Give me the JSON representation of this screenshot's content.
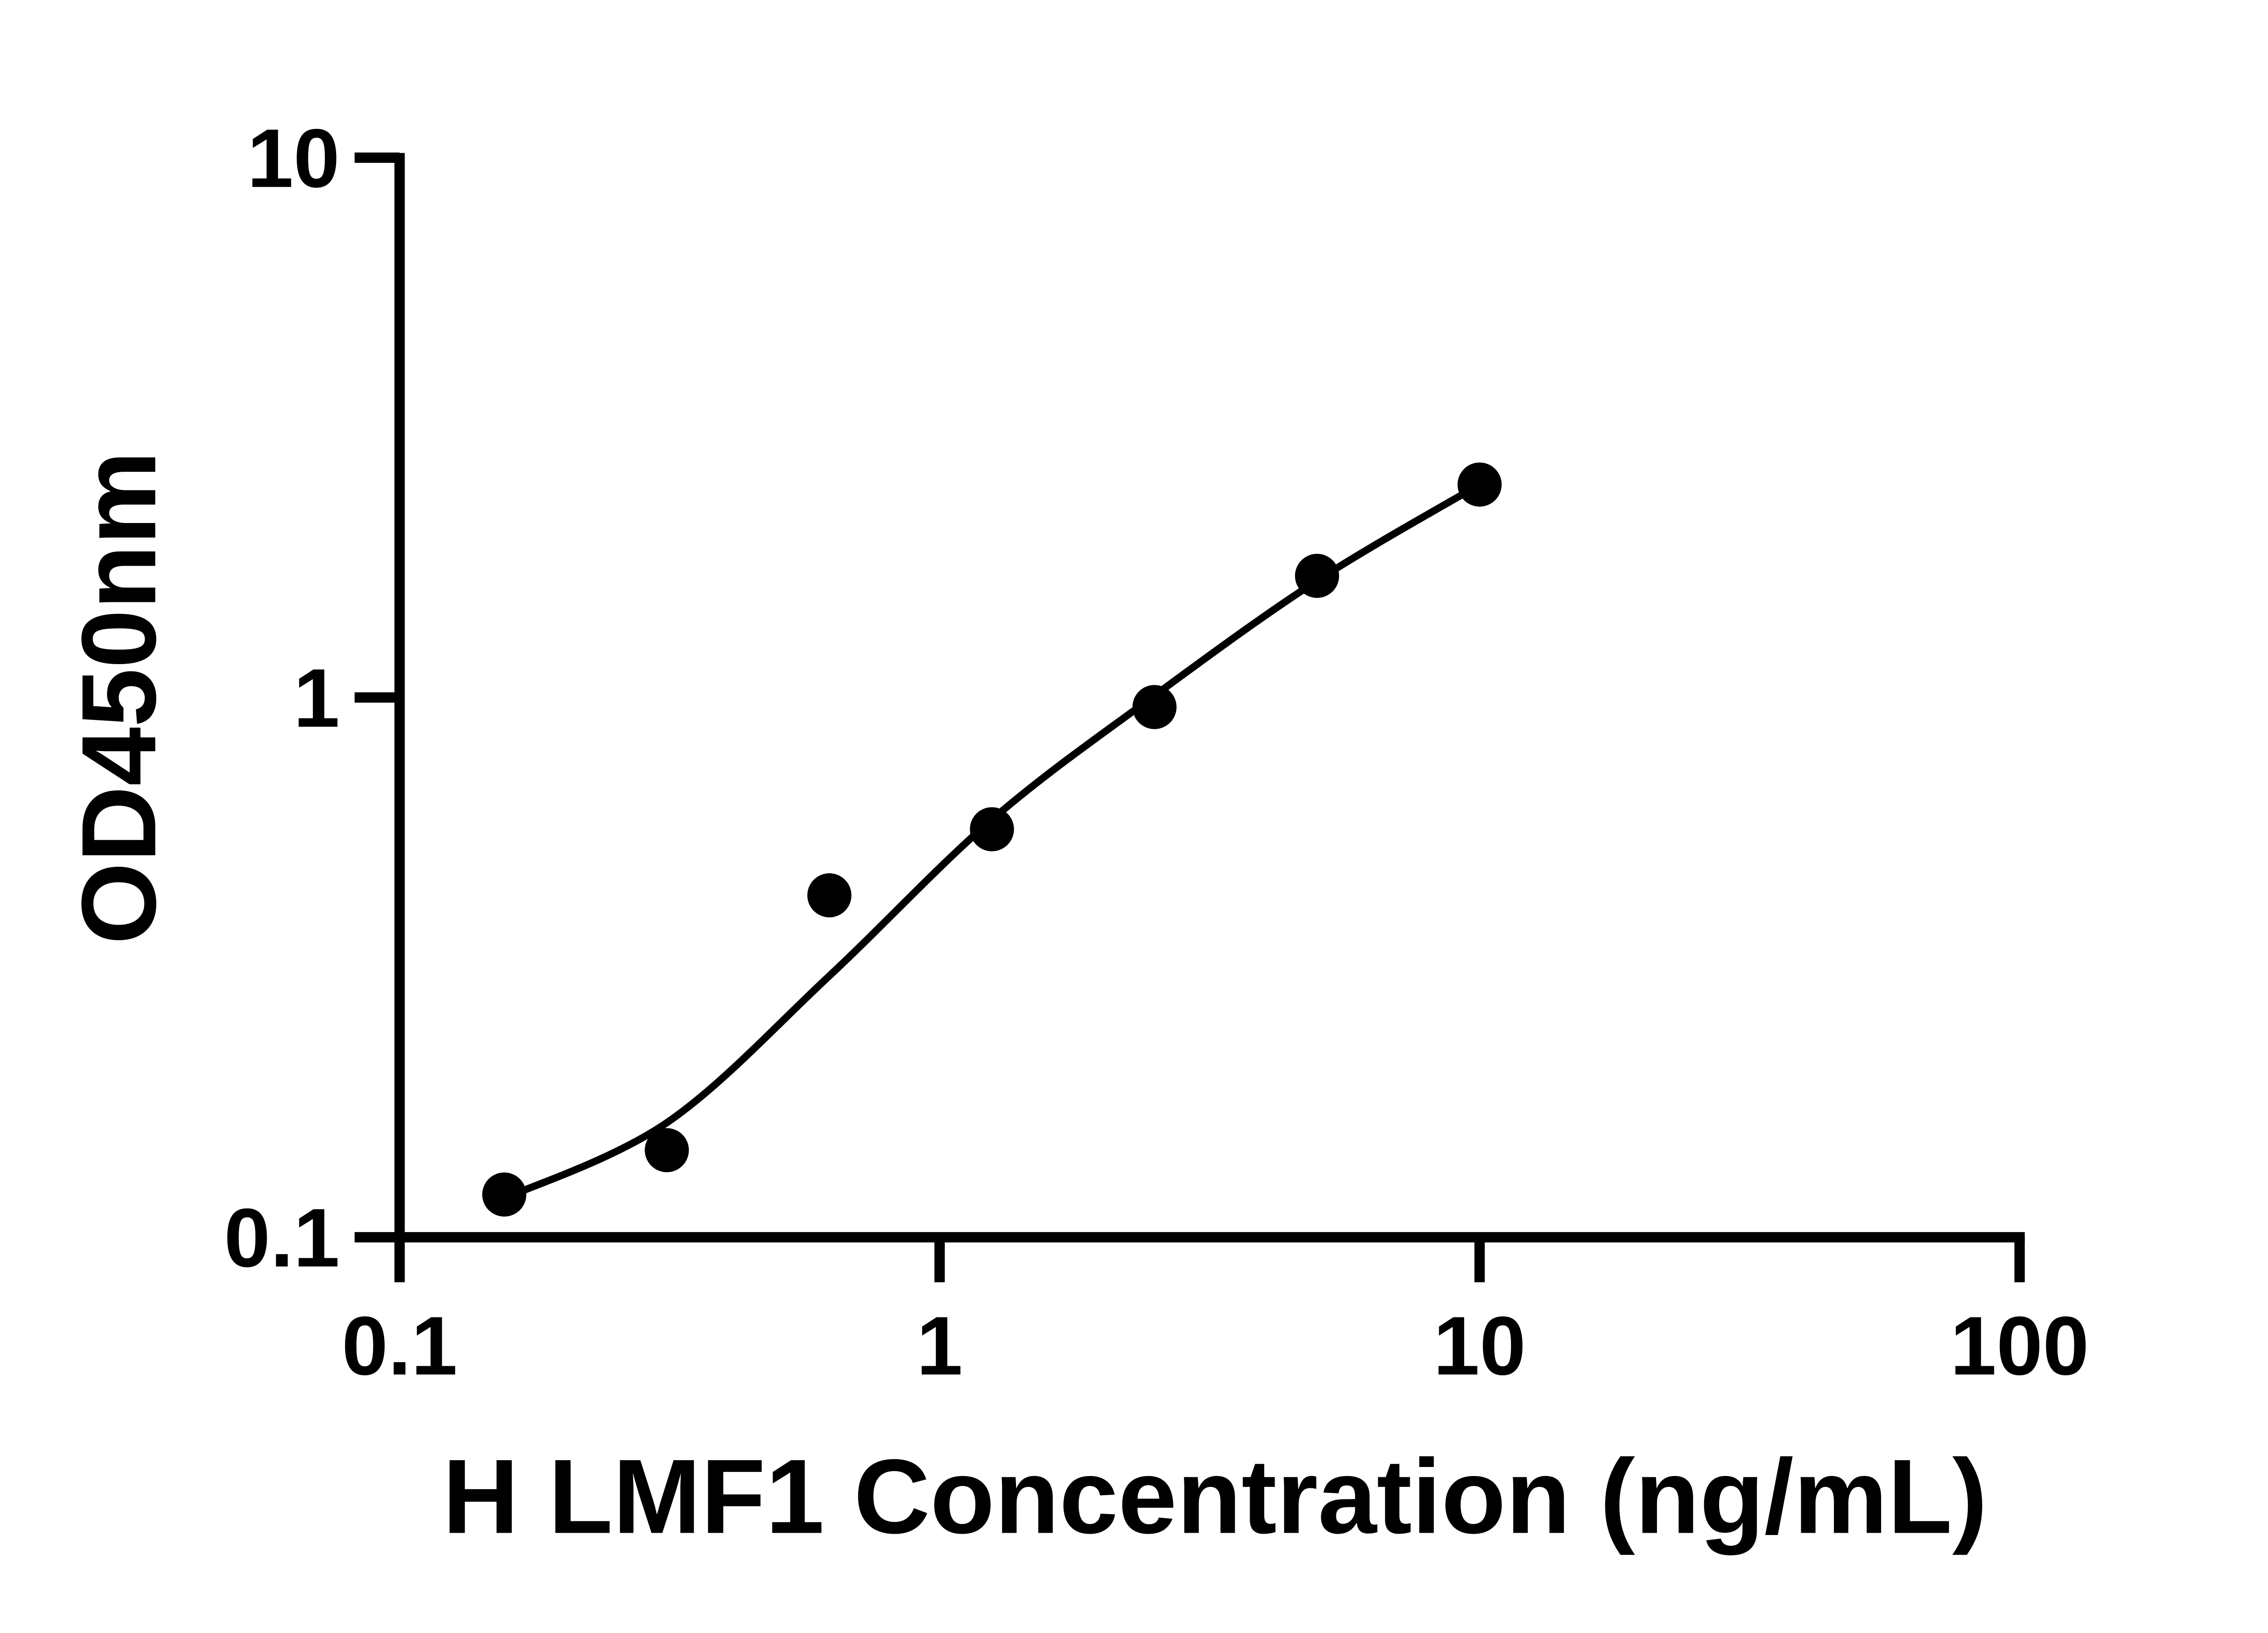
{
  "figure": {
    "background": "#ffffff",
    "ink": "#000000",
    "marker_shape": "filled-circle"
  },
  "chart_data": {
    "type": "scatter",
    "title": "",
    "xlabel": "H LMF1 Concentration (ng/mL)",
    "ylabel": "OD450nm",
    "x_scale": "log10",
    "y_scale": "log10",
    "xlim": [
      0.1,
      100
    ],
    "ylim": [
      0.1,
      10
    ],
    "x_ticks": [
      0.1,
      1,
      10,
      100
    ],
    "x_tick_labels": [
      "0.1",
      "1",
      "10",
      "100"
    ],
    "y_ticks": [
      0.1,
      1,
      10
    ],
    "y_tick_labels": [
      "0.1",
      "1",
      "10"
    ],
    "grid": false,
    "legend": null,
    "series": [
      {
        "name": "standard-points",
        "kind": "scatter",
        "color": "#000000",
        "points": [
          {
            "x": 0.15625,
            "y": 0.12
          },
          {
            "x": 0.3125,
            "y": 0.145
          },
          {
            "x": 0.625,
            "y": 0.43
          },
          {
            "x": 1.25,
            "y": 0.57
          },
          {
            "x": 2.5,
            "y": 0.96
          },
          {
            "x": 5,
            "y": 1.68
          },
          {
            "x": 10,
            "y": 2.48
          }
        ]
      },
      {
        "name": "fitted-curve",
        "kind": "line",
        "color": "#000000",
        "points": [
          {
            "x": 0.15625,
            "y": 0.118
          },
          {
            "x": 0.3125,
            "y": 0.163
          },
          {
            "x": 0.625,
            "y": 0.305
          },
          {
            "x": 1.25,
            "y": 0.594
          },
          {
            "x": 2.5,
            "y": 1.008
          },
          {
            "x": 5,
            "y": 1.646
          },
          {
            "x": 10,
            "y": 2.48
          }
        ]
      }
    ]
  }
}
